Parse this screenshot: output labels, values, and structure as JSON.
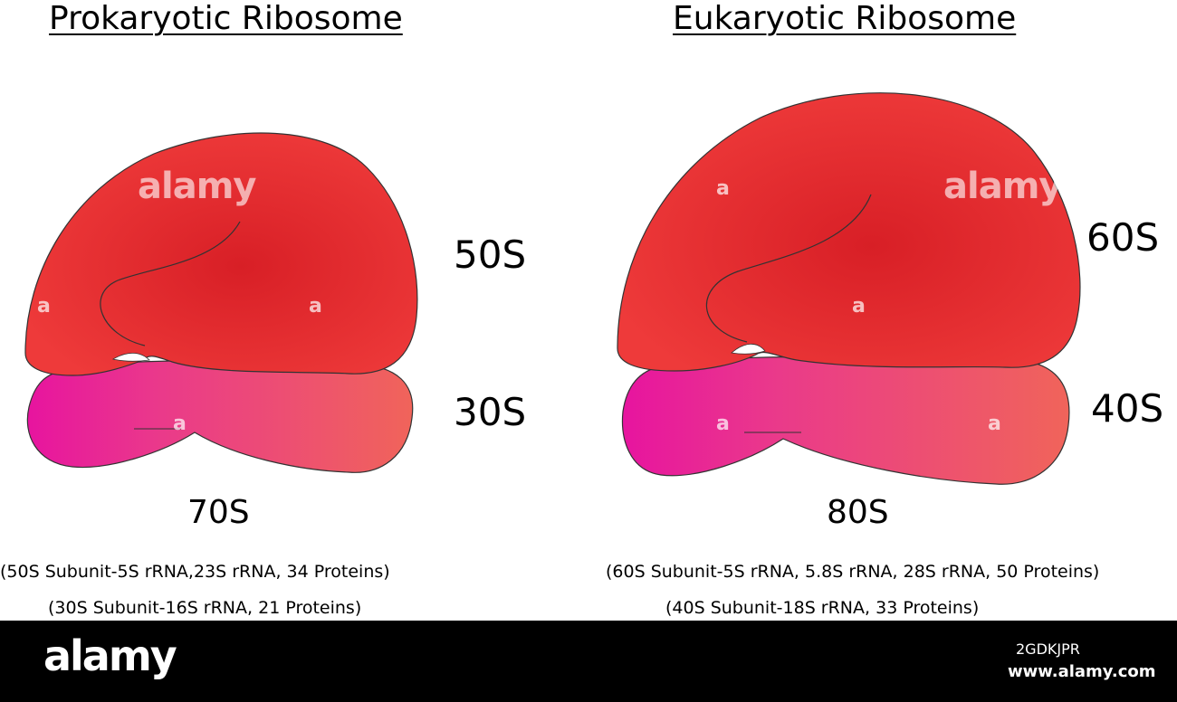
{
  "prokaryote": {
    "title": "Prokaryotic Ribosome",
    "large_subunit": "50S",
    "small_subunit": "30S",
    "total": "70S",
    "large_composition": "(50S Subunit-5S rRNA,23S rRNA, 34 Proteins)",
    "small_composition": "(30S Subunit-16S rRNA, 21 Proteins)"
  },
  "eukaryote": {
    "title": "Eukaryotic Ribosome",
    "large_subunit": "60S",
    "small_subunit": "40S",
    "total": "80S",
    "large_composition": "(60S Subunit-5S rRNA, 5.8S rRNA, 28S rRNA, 50 Proteins)",
    "small_composition": "(40S Subunit-18S rRNA, 33 Proteins)"
  },
  "colors": {
    "large_subunit_light": "#ee3a3a",
    "large_subunit_dark": "#d81f26",
    "small_subunit_magenta": "#e7149f",
    "small_subunit_salmon": "#f0645a",
    "outline": "#333333",
    "footer_background": "#000000"
  },
  "watermark": {
    "brand": "alamy",
    "letter": "a"
  },
  "footer": {
    "logo": "alamy",
    "image_id": "2GDKJPR",
    "url": "www.alamy.com"
  }
}
